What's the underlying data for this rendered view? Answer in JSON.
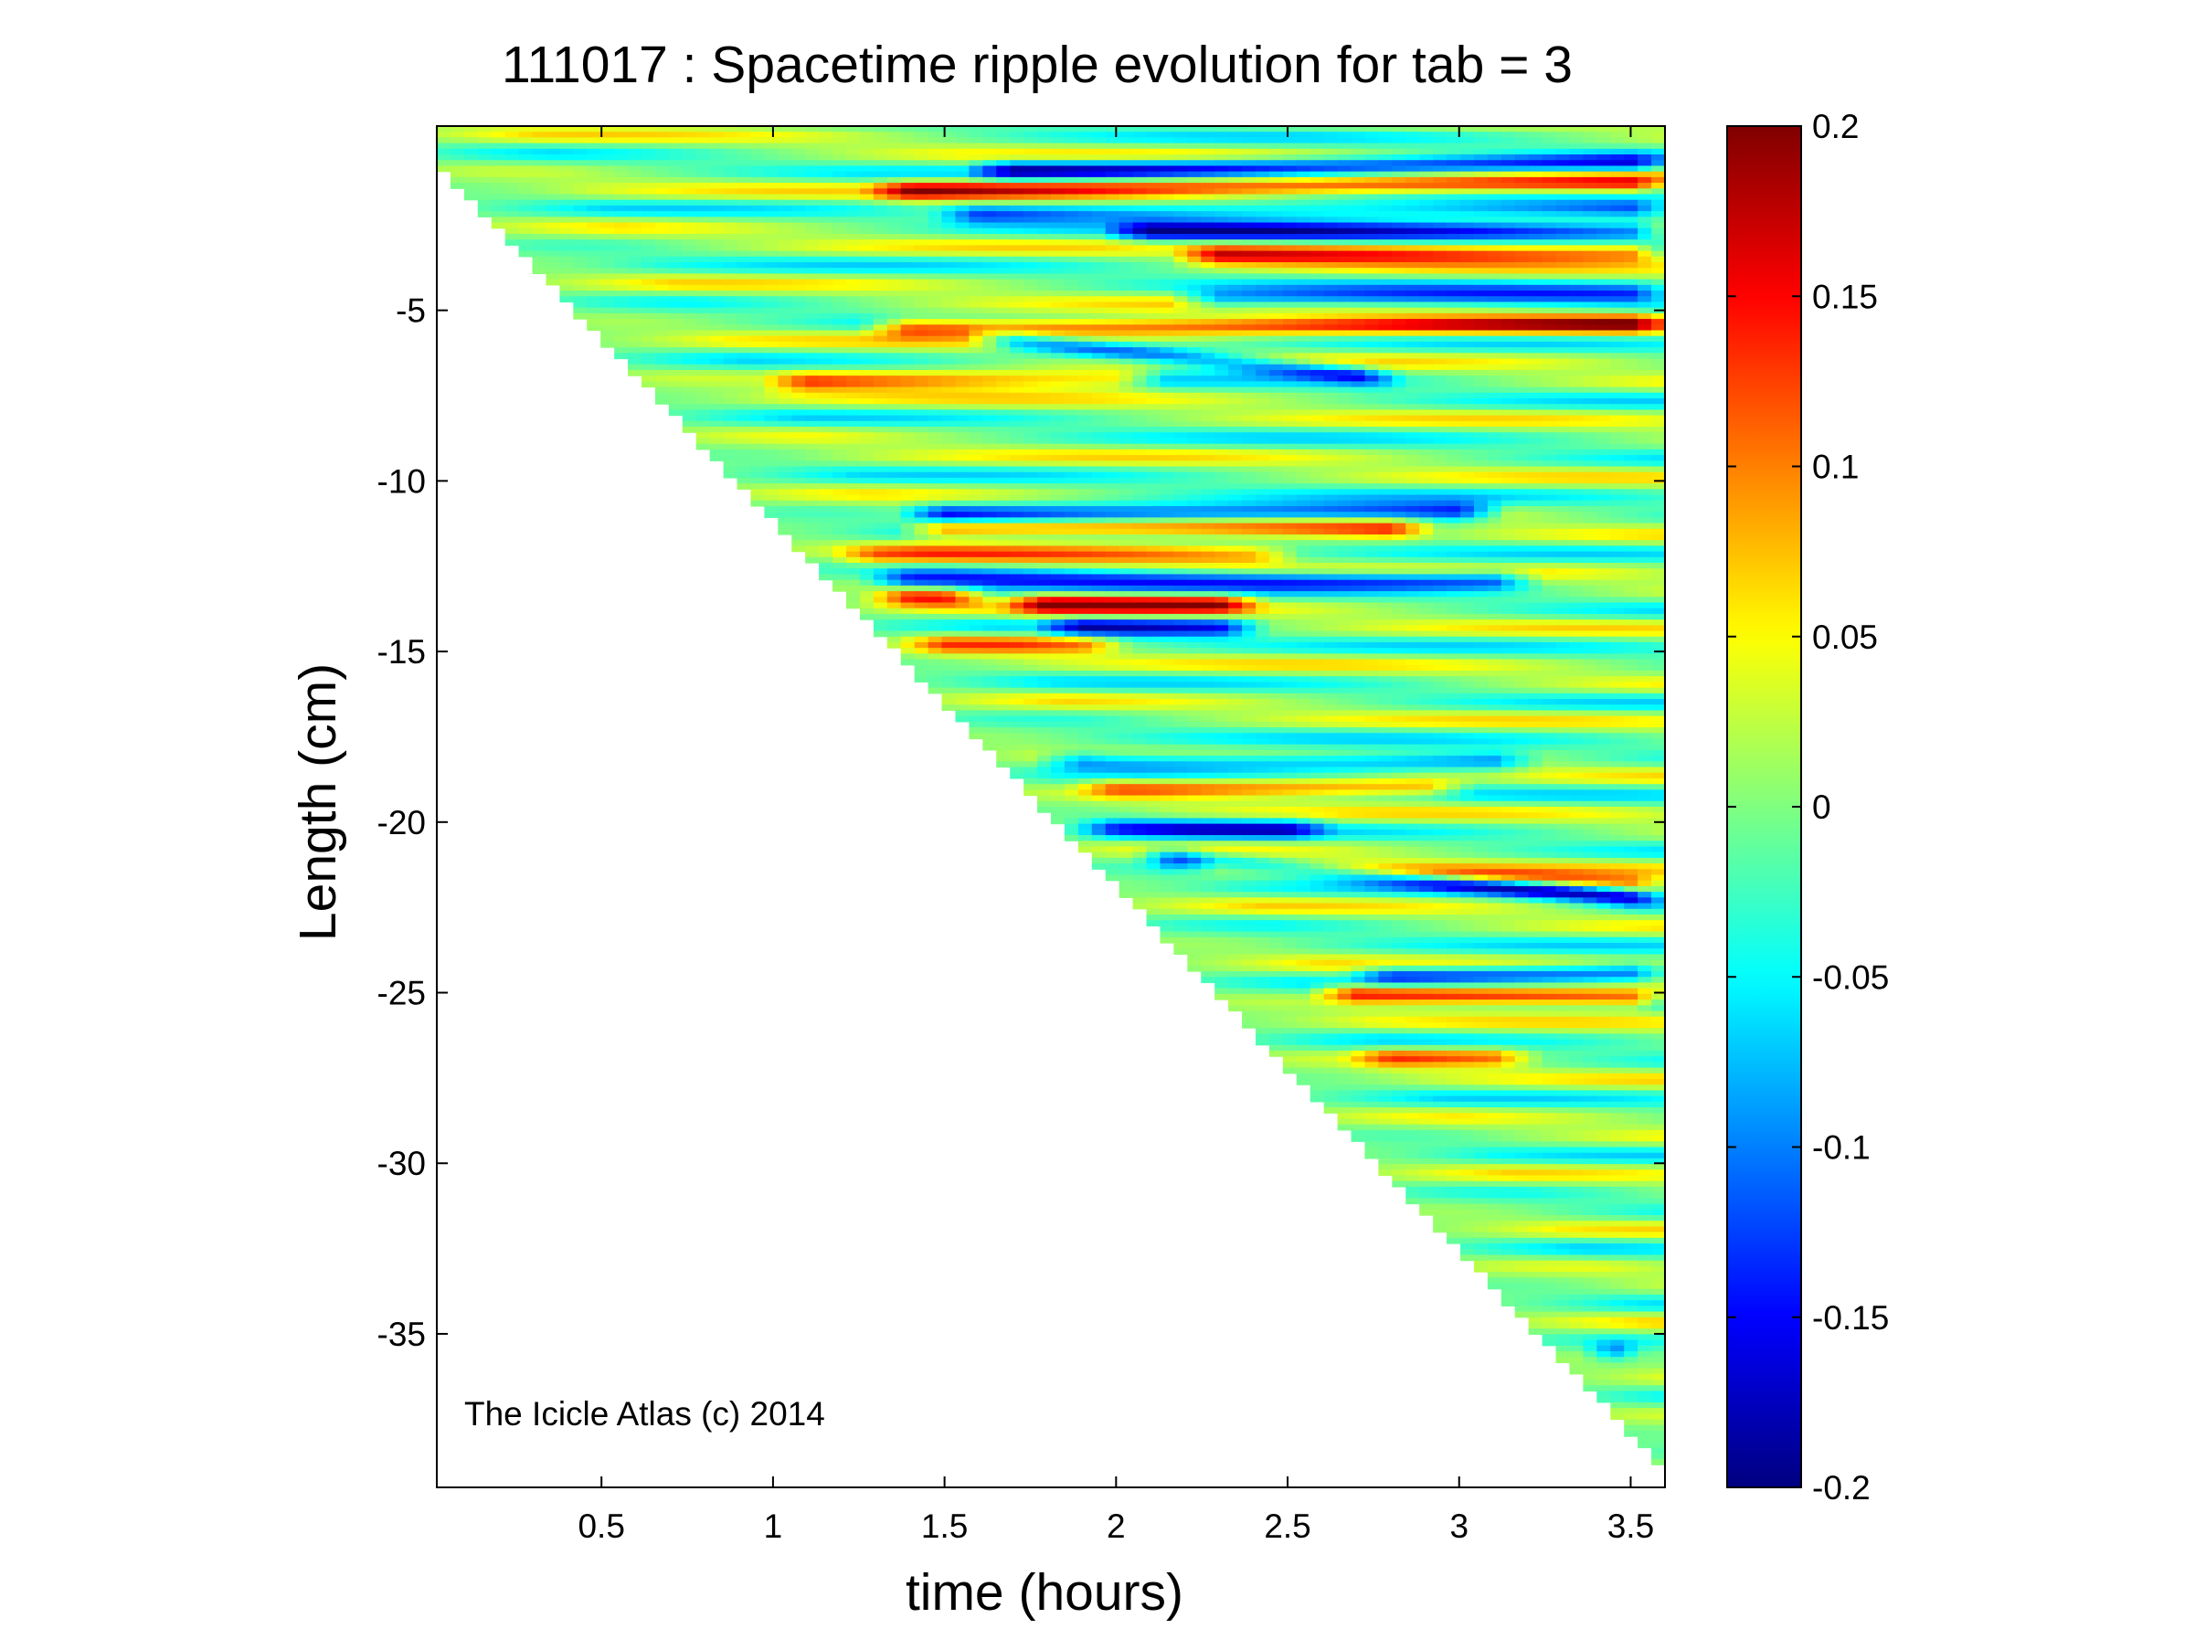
{
  "chart_data": {
    "type": "heatmap",
    "title": "111017 : Spacetime ripple evolution for tab = 3",
    "xlabel": "time (hours)",
    "ylabel": "Length (cm)",
    "annotation": "The Icicle Atlas (c) 2014",
    "xlim": [
      0.02,
      3.6
    ],
    "ylim": [
      -39.5,
      0.4
    ],
    "xticks": [
      0.5,
      1,
      1.5,
      2,
      2.5,
      3,
      3.5
    ],
    "xtick_labels": [
      "0.5",
      "1",
      "1.5",
      "2",
      "2.5",
      "3",
      "3.5"
    ],
    "yticks": [
      -5,
      -10,
      -15,
      -20,
      -25,
      -30,
      -35
    ],
    "ytick_labels": [
      "-5",
      "-10",
      "-15",
      "-20",
      "-25",
      "-30",
      "-35"
    ],
    "grid": false,
    "colormap": "jet",
    "colorbar": {
      "clim": [
        -0.2,
        0.2
      ],
      "ticks": [
        0.2,
        0.15,
        0.1,
        0.05,
        0,
        -0.05,
        -0.1,
        -0.15,
        -0.2
      ],
      "tick_labels": [
        "0.2",
        "0.15",
        "0.1",
        "0.05",
        "0",
        "-0.05",
        "-0.1",
        "-0.15",
        "-0.2"
      ]
    },
    "growth_front": {
      "x": [
        0.0,
        3.6
      ],
      "y": [
        -0.5,
        -39.0
      ]
    },
    "features": [
      {
        "y_start": -1.5,
        "y_end": -1.3,
        "t_start": 1.3,
        "t_end": 3.6,
        "amplitude": 0.14
      },
      {
        "y_start": -0.9,
        "y_end": -0.7,
        "t_start": 1.6,
        "t_end": 3.6,
        "amplitude": -0.14
      },
      {
        "y_start": -2.2,
        "y_end": -2.0,
        "t_start": 1.5,
        "t_end": 3.6,
        "amplitude": -0.12
      },
      {
        "y_start": -2.7,
        "y_end": -2.7,
        "t_start": 2.0,
        "t_end": 3.6,
        "amplitude": -0.14
      },
      {
        "y_start": -3.4,
        "y_end": -3.3,
        "t_start": 2.2,
        "t_end": 3.6,
        "amplitude": 0.15
      },
      {
        "y_start": -4.7,
        "y_end": -4.5,
        "t_start": 2.2,
        "t_end": 3.6,
        "amplitude": -0.12
      },
      {
        "y_start": -5.5,
        "y_end": -5.4,
        "t_start": 1.3,
        "t_end": 3.6,
        "amplitude": 0.15
      },
      {
        "y_start": -5.8,
        "y_end": -7.0,
        "t_start": 1.6,
        "t_end": 2.8,
        "amplitude": -0.13
      },
      {
        "y_start": -7.1,
        "y_end": -7.0,
        "t_start": 1.0,
        "t_end": 2.1,
        "amplitude": 0.12
      },
      {
        "y_start": -11.0,
        "y_end": -10.9,
        "t_start": 1.4,
        "t_end": 3.1,
        "amplitude": -0.17
      },
      {
        "y_start": -11.4,
        "y_end": -11.4,
        "t_start": 1.4,
        "t_end": 2.9,
        "amplitude": 0.15
      },
      {
        "y_start": -12.2,
        "y_end": -12.2,
        "t_start": 1.2,
        "t_end": 2.5,
        "amplitude": 0.08
      },
      {
        "y_start": -12.9,
        "y_end": -12.9,
        "t_start": 1.3,
        "t_end": 3.2,
        "amplitude": -0.13
      },
      {
        "y_start": -13.4,
        "y_end": -13.4,
        "t_start": 1.3,
        "t_end": 1.6,
        "amplitude": 0.14
      },
      {
        "y_start": -13.6,
        "y_end": -13.6,
        "t_start": 1.7,
        "t_end": 2.4,
        "amplitude": 0.16
      },
      {
        "y_start": -14.3,
        "y_end": -14.3,
        "t_start": 1.8,
        "t_end": 2.4,
        "amplitude": -0.14
      },
      {
        "y_start": -14.8,
        "y_end": -14.8,
        "t_start": 1.4,
        "t_end": 2.0,
        "amplitude": 0.1
      },
      {
        "y_start": -18.2,
        "y_end": -18.2,
        "t_start": 1.8,
        "t_end": 3.2,
        "amplitude": -0.11
      },
      {
        "y_start": -19.0,
        "y_end": -19.0,
        "t_start": 1.9,
        "t_end": 3.0,
        "amplitude": 0.1
      },
      {
        "y_start": -20.2,
        "y_end": -20.2,
        "t_start": 1.9,
        "t_end": 2.6,
        "amplitude": -0.12
      },
      {
        "y_start": -21.0,
        "y_end": -22.3,
        "t_start": 2.1,
        "t_end": 3.6,
        "amplitude": -0.17
      },
      {
        "y_start": -21.2,
        "y_end": -21.9,
        "t_start": 2.2,
        "t_end": 3.6,
        "amplitude": 0.14
      },
      {
        "y_start": -25.0,
        "y_end": -25.2,
        "t_start": 2.6,
        "t_end": 3.6,
        "amplitude": 0.15
      },
      {
        "y_start": -24.5,
        "y_end": -24.4,
        "t_start": 2.7,
        "t_end": 3.6,
        "amplitude": -0.12
      },
      {
        "y_start": -26.9,
        "y_end": -26.9,
        "t_start": 2.7,
        "t_end": 3.2,
        "amplitude": 0.1
      },
      {
        "y_start": -35.5,
        "y_end": -35.5,
        "t_start": 3.4,
        "t_end": 3.5,
        "amplitude": -0.13
      }
    ]
  }
}
